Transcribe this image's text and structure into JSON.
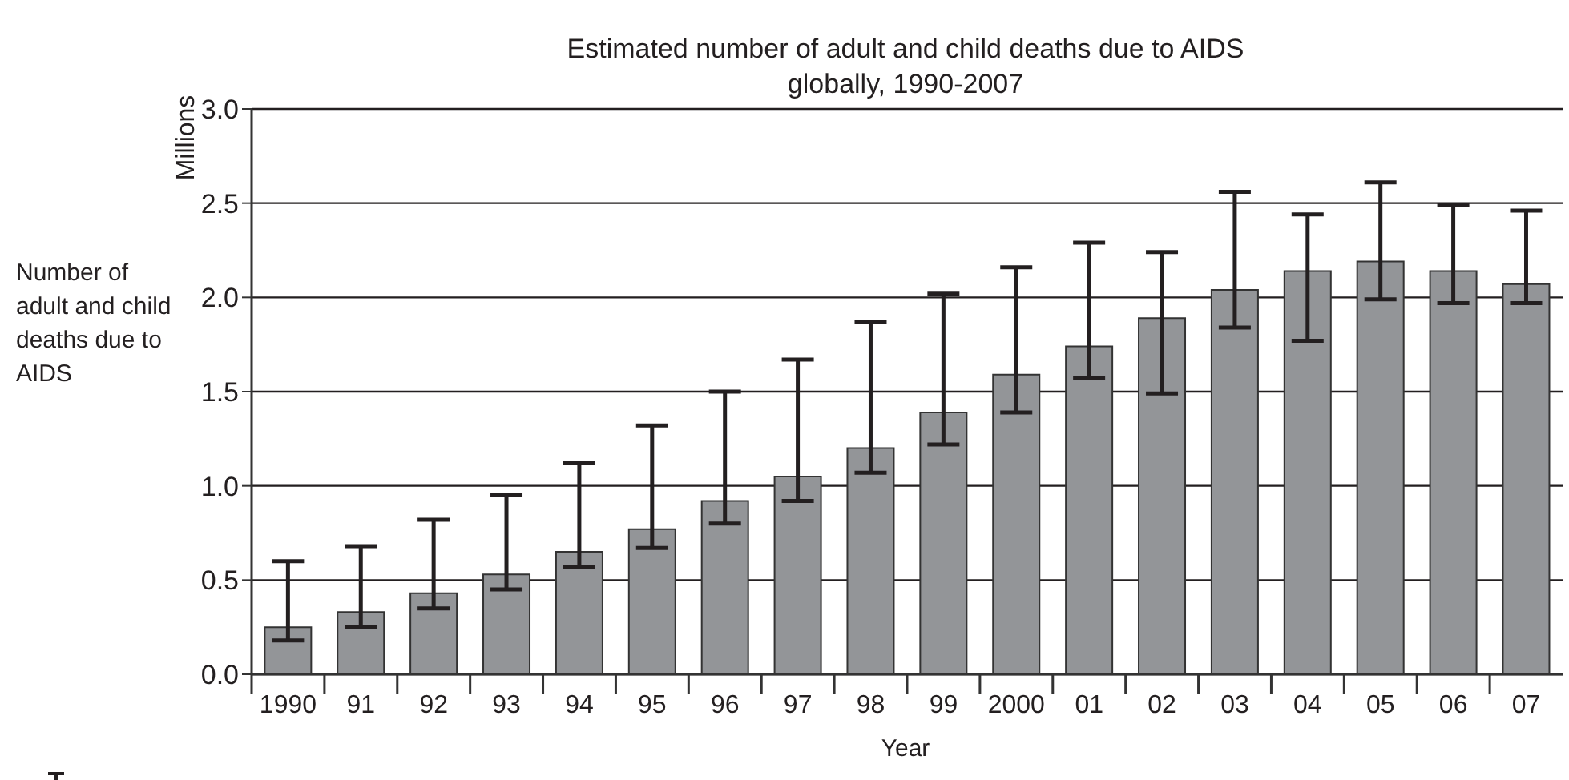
{
  "chart_data": {
    "type": "bar",
    "title": "Estimated number of adult and child deaths due to AIDS globally, 1990-2007",
    "xlabel": "Year",
    "ylabel": "Millions",
    "annotations": [
      "Number of adult and child deaths due to AIDS"
    ],
    "categories": [
      "1990",
      "91",
      "92",
      "93",
      "94",
      "95",
      "96",
      "97",
      "98",
      "99",
      "2000",
      "01",
      "02",
      "03",
      "04",
      "05",
      "06",
      "07"
    ],
    "values": [
      0.25,
      0.33,
      0.43,
      0.53,
      0.65,
      0.77,
      0.92,
      1.05,
      1.2,
      1.39,
      1.59,
      1.74,
      1.89,
      2.04,
      2.14,
      2.19,
      2.14,
      2.07
    ],
    "errors": [
      [
        0.18,
        0.6
      ],
      [
        0.25,
        0.68
      ],
      [
        0.35,
        0.82
      ],
      [
        0.45,
        0.95
      ],
      [
        0.57,
        1.12
      ],
      [
        0.67,
        1.32
      ],
      [
        0.8,
        1.5
      ],
      [
        0.92,
        1.67
      ],
      [
        1.07,
        1.87
      ],
      [
        1.22,
        2.02
      ],
      [
        1.39,
        2.16
      ],
      [
        1.57,
        2.29
      ],
      [
        1.49,
        2.24
      ],
      [
        1.84,
        2.56
      ],
      [
        1.77,
        2.44
      ],
      [
        1.99,
        2.61
      ],
      [
        1.97,
        2.49
      ],
      [
        1.97,
        2.46
      ]
    ],
    "color": "#939598",
    "ylim": [
      0,
      3
    ],
    "yticks": [
      {
        "value": 0,
        "label": "0.0"
      },
      {
        "value": 0.5,
        "label": "0.5"
      },
      {
        "value": 1,
        "label": "1.0"
      },
      {
        "value": 1.5,
        "label": "1.5"
      },
      {
        "value": 2,
        "label": "2.0"
      },
      {
        "value": 2.5,
        "label": "2.5"
      },
      {
        "value": 3,
        "label": "3.0"
      }
    ],
    "grid": "y"
  }
}
